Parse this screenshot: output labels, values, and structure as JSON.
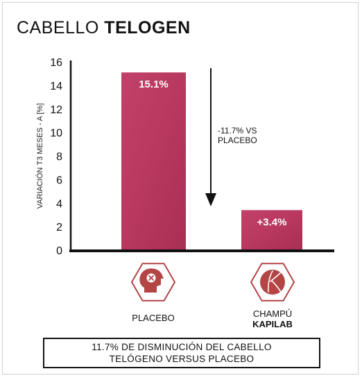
{
  "title": {
    "regular": "CABELLO",
    "bold": "TELOGEN"
  },
  "colors": {
    "bar": "#b8385f",
    "icon": "#b34545",
    "axis": "#111111"
  },
  "chart_data": {
    "type": "bar",
    "ylabel": "VARIACIÓN T3 MESES - A [%]",
    "ylim": [
      0,
      16
    ],
    "yticks": [
      0,
      2,
      4,
      6,
      8,
      10,
      12,
      14,
      16
    ],
    "grid": false,
    "categories": [
      {
        "line1": "PLACEBO",
        "line2": "",
        "icon": "head-with-x-icon"
      },
      {
        "line1": "CHAMPÚ",
        "line2": "KAPILAB",
        "icon": "kapilab-logo-icon"
      }
    ],
    "values": [
      15.1,
      3.4
    ],
    "value_labels": [
      "15.1%",
      "+3.4%"
    ],
    "annotation": {
      "text_lines": [
        "-11.7% VS",
        "PLACEBO"
      ],
      "arrow": "down"
    }
  },
  "footer": {
    "lines": [
      "11.7% DE DISMINUCIÓN DEL CABELLO",
      "TELÓGENO VERSUS PLACEBO"
    ]
  }
}
